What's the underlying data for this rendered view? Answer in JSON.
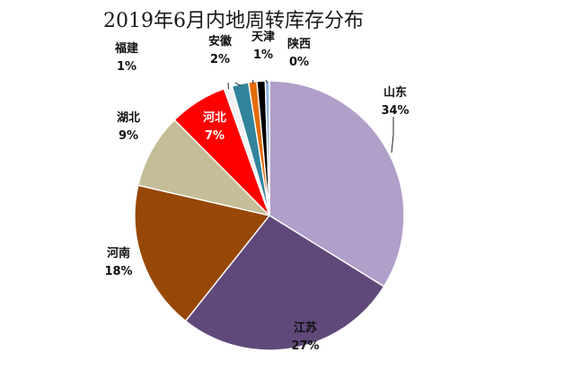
{
  "chart_data": {
    "type": "pie",
    "title": "2019年6月内地周转库存分布",
    "slices": [
      {
        "label": "山东",
        "value": 34,
        "pct_label": "34%",
        "color": "#b09fc9"
      },
      {
        "label": "江苏",
        "value": 27,
        "pct_label": "27%",
        "color": "#60497a"
      },
      {
        "label": "河南",
        "value": 18,
        "pct_label": "18%",
        "color": "#974806"
      },
      {
        "label": "湖北",
        "value": 9,
        "pct_label": "9%",
        "color": "#c4bd97"
      },
      {
        "label": "河北",
        "value": 7,
        "pct_label": "7%",
        "color": "#ff0000"
      },
      {
        "label": "福建",
        "value": 1,
        "pct_label": "1%",
        "color": "#f2f2f2"
      },
      {
        "label": "安徽",
        "value": 2,
        "pct_label": "2%",
        "color": "#31849b"
      },
      {
        "label": "天津",
        "value": 1,
        "pct_label": "1%",
        "color": "#e46c0a"
      },
      {
        "label": "",
        "value": 1,
        "pct_label": "",
        "color": "#000000"
      },
      {
        "label": "陕西",
        "value": 0.5,
        "pct_label": "0%",
        "color": "#8db3e2"
      }
    ]
  }
}
